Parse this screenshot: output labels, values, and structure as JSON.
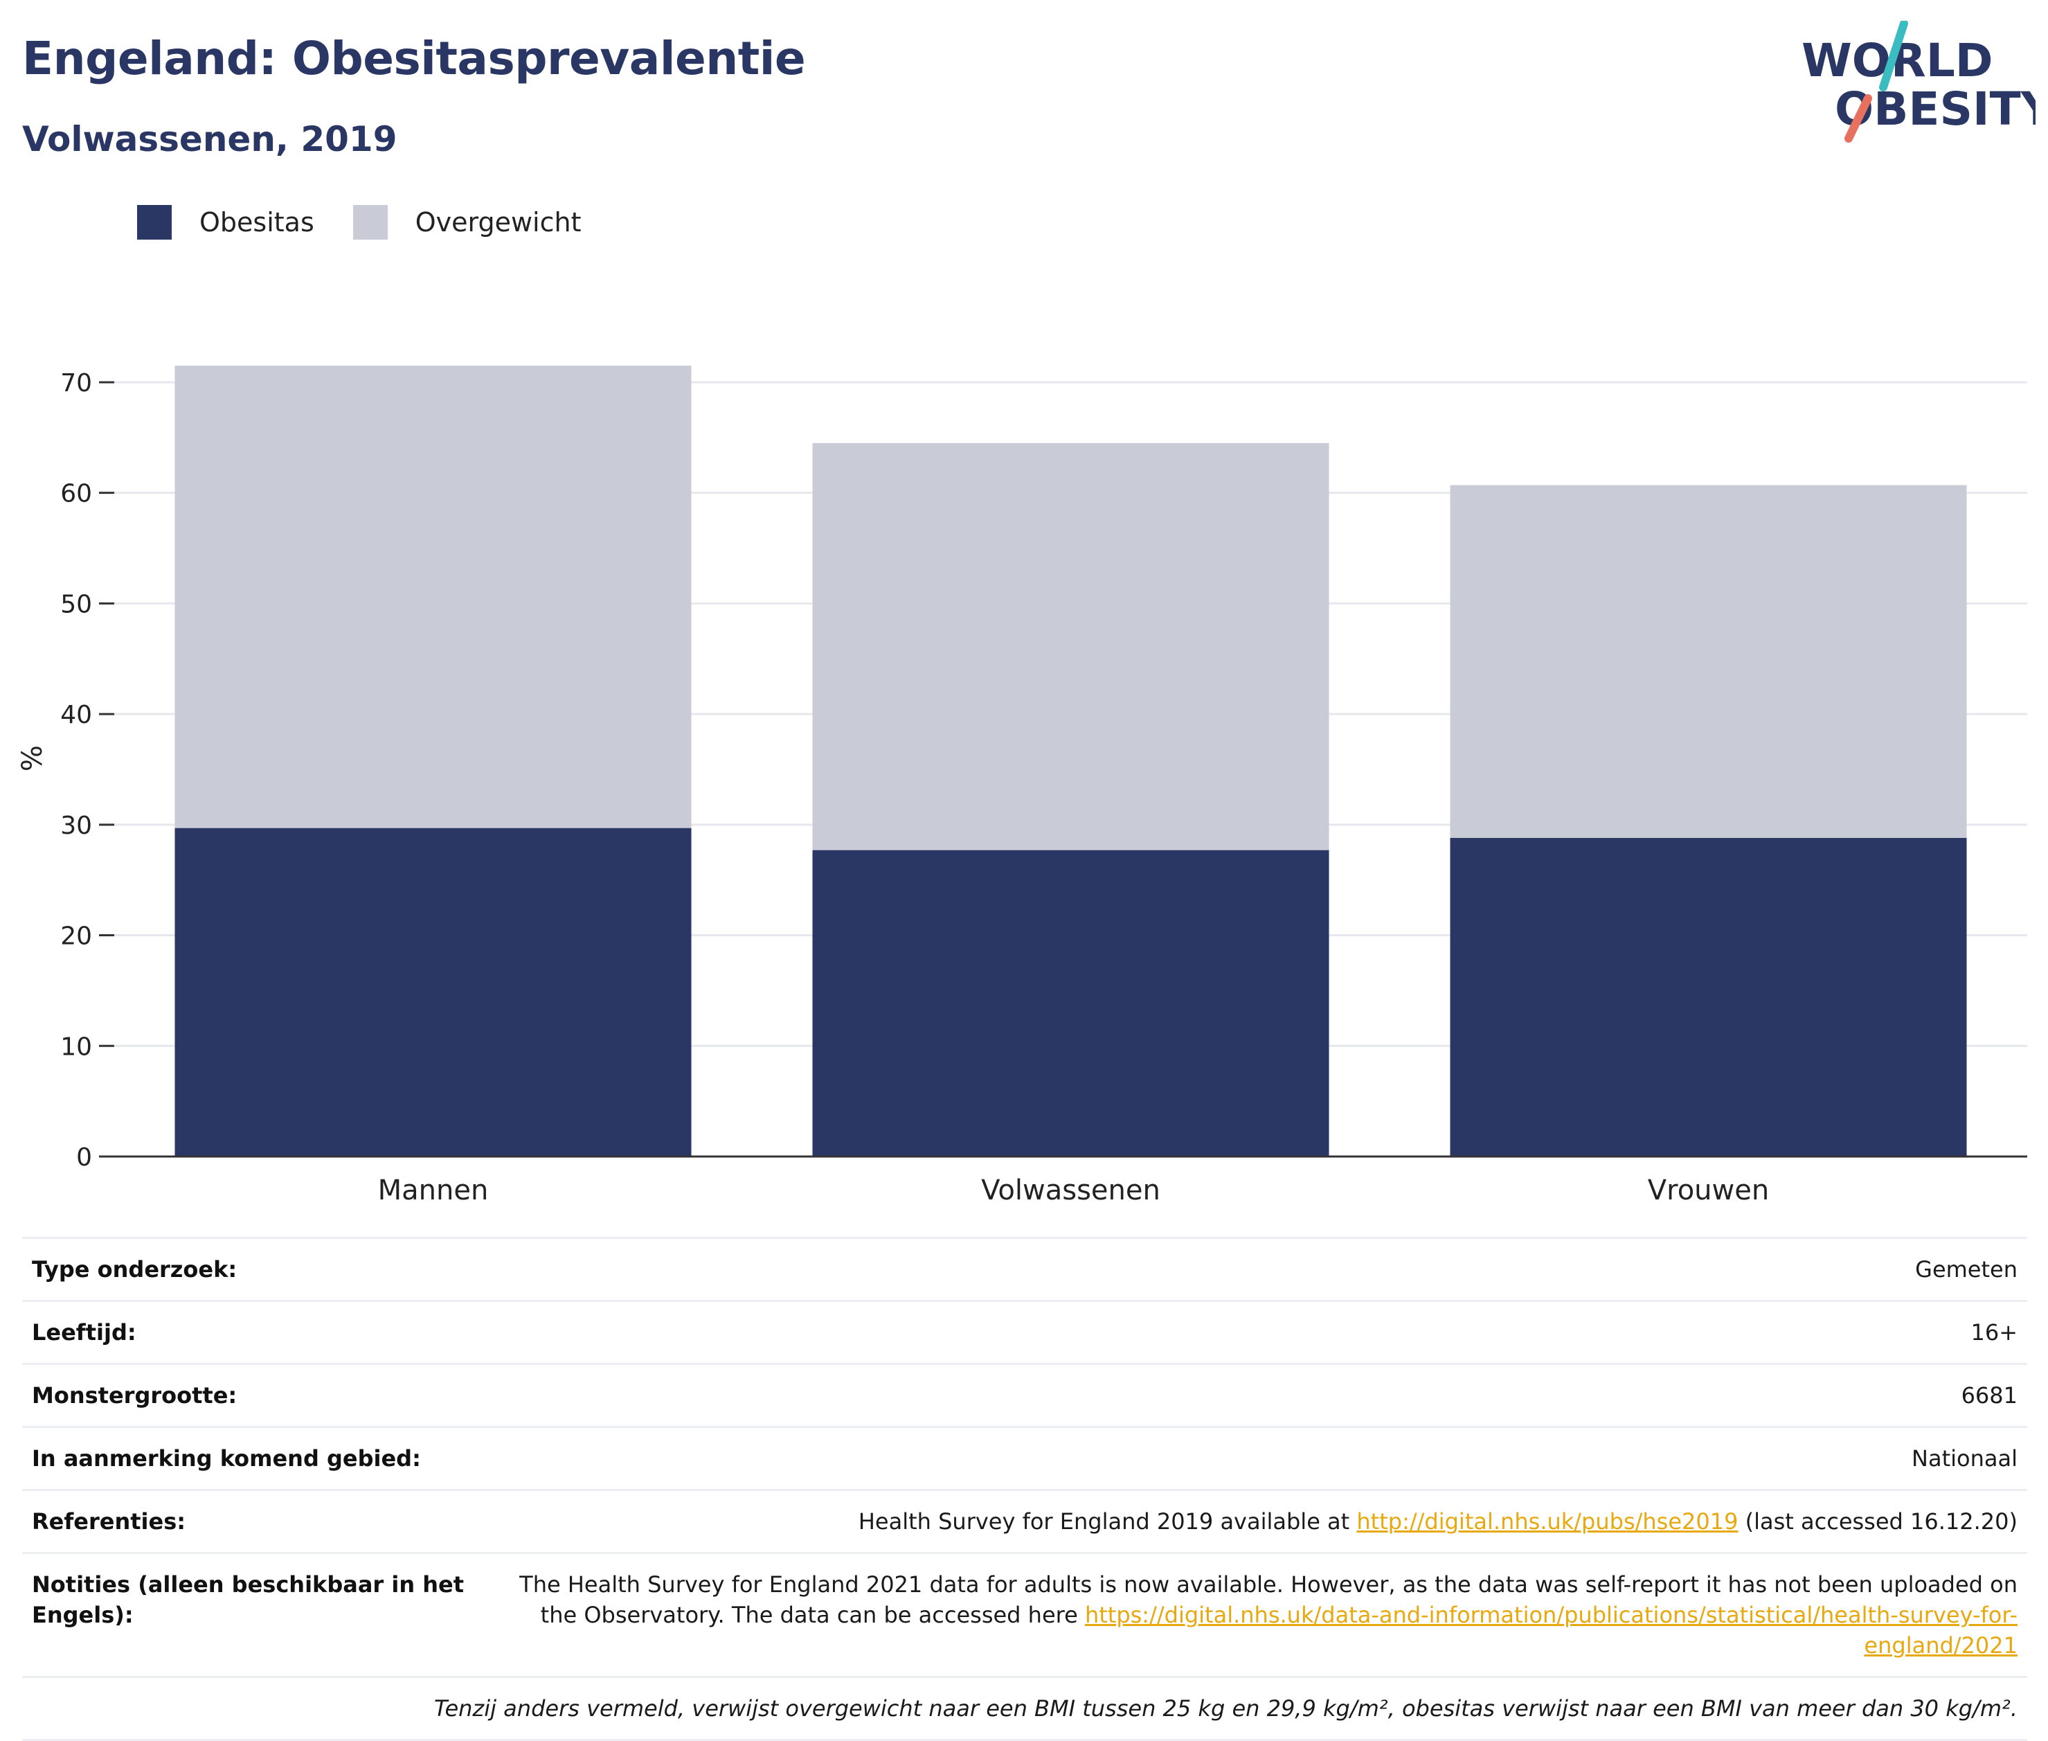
{
  "header": {
    "title": "Engeland: Obesitasprevalentie",
    "subtitle": "Volwassenen, 2019"
  },
  "logo": {
    "line1": "WORLD",
    "line2": "OBESITY",
    "text_color": "#2a3764",
    "stroke_top_color": "#3bbcc1",
    "stroke_bottom_color": "#e8705e"
  },
  "legend": {
    "items": [
      {
        "label": "Obesitas",
        "color": "#2a3764"
      },
      {
        "label": "Overgewicht",
        "color": "#c9cbd7"
      }
    ]
  },
  "chart_data": {
    "type": "bar",
    "stacked": true,
    "categories": [
      "Mannen",
      "Volwassenen",
      "Vrouwen"
    ],
    "series": [
      {
        "name": "Obesitas",
        "values": [
          29.7,
          27.7,
          28.8
        ],
        "color": "#2a3764"
      },
      {
        "name": "Overgewicht",
        "values": [
          41.8,
          36.8,
          31.9
        ],
        "color": "#c9cbd7"
      }
    ],
    "ylabel": "%",
    "ylim": [
      0,
      72
    ],
    "yticks": [
      0,
      10,
      20,
      30,
      40,
      50,
      60,
      70
    ],
    "grid": true,
    "legend_position": "top-left"
  },
  "info": {
    "rows": [
      {
        "key": "Type onderzoek:",
        "value": "Gemeten"
      },
      {
        "key": "Leeftijd:",
        "value": "16+"
      },
      {
        "key": "Monstergrootte:",
        "value": "6681"
      },
      {
        "key": "In aanmerking komend gebied:",
        "value": "Nationaal"
      }
    ],
    "references": {
      "key": "Referenties:",
      "prefix": "Health Survey for England 2019 available at ",
      "link": "http://digital.nhs.uk/pubs/hse2019",
      "suffix": " (last accessed 16.12.20)"
    },
    "notes": {
      "key": "Notities (alleen beschikbaar in het Engels):",
      "text": "The Health Survey for England 2021 data for adults is now available. However, as the data was self-report it has not been uploaded on the Observatory. The data can be accessed here ",
      "link": "https://digital.nhs.uk/data-and-information/publications/statistical/health-survey-for-england/2021"
    },
    "footnote": "Tenzij anders vermeld, verwijst overgewicht naar een BMI tussen 25 kg en 29,9 kg/m², obesitas verwijst naar een BMI van meer dan 30 kg/m²."
  }
}
